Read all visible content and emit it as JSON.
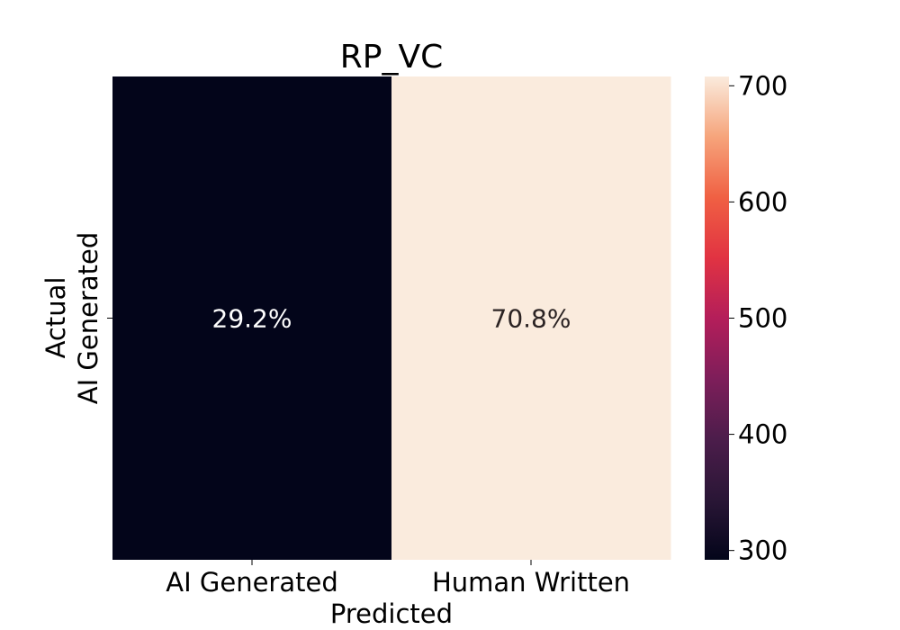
{
  "chart_data": {
    "type": "heatmap",
    "title": "RP_VC",
    "xlabel": "Predicted",
    "ylabel": "Actual",
    "x_categories": [
      "AI Generated",
      "Human Written"
    ],
    "y_categories": [
      "AI Generated"
    ],
    "values": [
      [
        292,
        708
      ]
    ],
    "annotations": [
      [
        "29.2%",
        "70.8%"
      ]
    ],
    "colorbar": {
      "colormap": "rocket",
      "range": [
        292,
        708
      ],
      "ticks": [
        300,
        400,
        500,
        600,
        700
      ]
    },
    "annotation_colors": {
      "on_dark": "#ffffff",
      "on_light": "#2b2323"
    }
  }
}
